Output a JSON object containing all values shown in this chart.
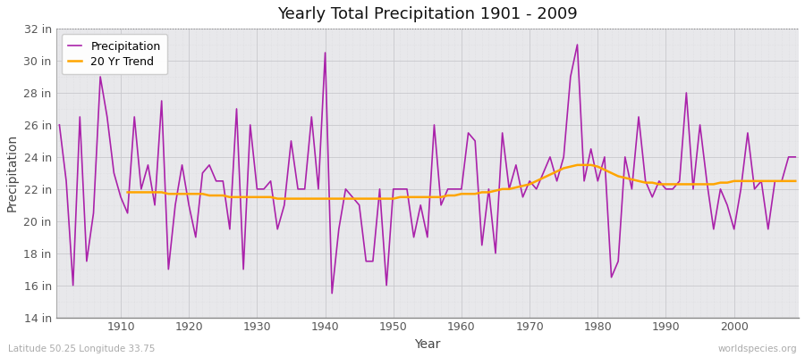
{
  "title": "Yearly Total Precipitation 1901 - 2009",
  "xlabel": "Year",
  "ylabel": "Precipitation",
  "lat_lon_label": "Latitude 50.25 Longitude 33.75",
  "worldspecies_label": "worldspecies.org",
  "fig_bg_color": "#ffffff",
  "plot_bg_color": "#e8e8eb",
  "precip_color": "#aa22aa",
  "trend_color": "#FFA500",
  "ylim": [
    14,
    32
  ],
  "ytick_labels": [
    "14 in",
    "16 in",
    "18 in",
    "20 in",
    "22 in",
    "24 in",
    "26 in",
    "28 in",
    "30 in",
    "32 in"
  ],
  "ytick_values": [
    14,
    16,
    18,
    20,
    22,
    24,
    26,
    28,
    30,
    32
  ],
  "years": [
    1901,
    1902,
    1903,
    1904,
    1905,
    1906,
    1907,
    1908,
    1909,
    1910,
    1911,
    1912,
    1913,
    1914,
    1915,
    1916,
    1917,
    1918,
    1919,
    1920,
    1921,
    1922,
    1923,
    1924,
    1925,
    1926,
    1927,
    1928,
    1929,
    1930,
    1931,
    1932,
    1933,
    1934,
    1935,
    1936,
    1937,
    1938,
    1939,
    1940,
    1941,
    1942,
    1943,
    1944,
    1945,
    1946,
    1947,
    1948,
    1949,
    1950,
    1951,
    1952,
    1953,
    1954,
    1955,
    1956,
    1957,
    1958,
    1959,
    1960,
    1961,
    1962,
    1963,
    1964,
    1965,
    1966,
    1967,
    1968,
    1969,
    1970,
    1971,
    1972,
    1973,
    1974,
    1975,
    1976,
    1977,
    1978,
    1979,
    1980,
    1981,
    1982,
    1983,
    1984,
    1985,
    1986,
    1987,
    1988,
    1989,
    1990,
    1991,
    1992,
    1993,
    1994,
    1995,
    1996,
    1997,
    1998,
    1999,
    2000,
    2001,
    2002,
    2003,
    2004,
    2005,
    2006,
    2007,
    2008,
    2009
  ],
  "precipitation": [
    26.0,
    22.5,
    16.0,
    26.5,
    17.5,
    20.5,
    29.0,
    26.5,
    23.0,
    21.5,
    20.5,
    26.5,
    22.0,
    23.5,
    21.0,
    27.5,
    17.0,
    21.0,
    23.5,
    21.0,
    19.0,
    23.0,
    23.5,
    22.5,
    22.5,
    19.5,
    27.0,
    17.0,
    26.0,
    22.0,
    22.0,
    22.5,
    19.5,
    21.0,
    25.0,
    22.0,
    22.0,
    26.5,
    22.0,
    30.5,
    15.5,
    19.5,
    22.0,
    21.5,
    21.0,
    17.5,
    17.5,
    22.0,
    16.0,
    22.0,
    22.0,
    22.0,
    19.0,
    21.0,
    19.0,
    26.0,
    21.0,
    22.0,
    22.0,
    22.0,
    25.5,
    25.0,
    18.5,
    22.0,
    18.0,
    25.5,
    22.0,
    23.5,
    21.5,
    22.5,
    22.0,
    23.0,
    24.0,
    22.5,
    24.0,
    29.0,
    31.0,
    22.5,
    24.5,
    22.5,
    24.0,
    16.5,
    17.5,
    24.0,
    22.0,
    26.5,
    22.5,
    21.5,
    22.5,
    22.0,
    22.0,
    22.5,
    28.0,
    22.0,
    26.0,
    22.5,
    19.5,
    22.0,
    21.0,
    19.5,
    22.0,
    25.5,
    22.0,
    22.5,
    19.5,
    22.5,
    22.5,
    24.0,
    24.0
  ],
  "trend": [
    null,
    null,
    null,
    null,
    null,
    null,
    null,
    null,
    null,
    null,
    21.8,
    21.8,
    21.8,
    21.8,
    21.8,
    21.8,
    21.7,
    21.7,
    21.7,
    21.7,
    21.7,
    21.7,
    21.6,
    21.6,
    21.6,
    21.5,
    21.5,
    21.5,
    21.5,
    21.5,
    21.5,
    21.5,
    21.4,
    21.4,
    21.4,
    21.4,
    21.4,
    21.4,
    21.4,
    21.4,
    21.4,
    21.4,
    21.4,
    21.4,
    21.4,
    21.4,
    21.4,
    21.4,
    21.4,
    21.4,
    21.5,
    21.5,
    21.5,
    21.5,
    21.5,
    21.5,
    21.5,
    21.6,
    21.6,
    21.7,
    21.7,
    21.7,
    21.8,
    21.8,
    21.9,
    22.0,
    22.0,
    22.1,
    22.2,
    22.3,
    22.5,
    22.7,
    22.9,
    23.1,
    23.3,
    23.4,
    23.5,
    23.5,
    23.5,
    23.4,
    23.2,
    23.0,
    22.8,
    22.7,
    22.6,
    22.5,
    22.4,
    22.4,
    22.3,
    22.3,
    22.3,
    22.3,
    22.3,
    22.3,
    22.3,
    22.3,
    22.3,
    22.4,
    22.4,
    22.5,
    22.5,
    22.5,
    22.5,
    22.5,
    22.5,
    22.5,
    22.5,
    22.5,
    22.5
  ]
}
